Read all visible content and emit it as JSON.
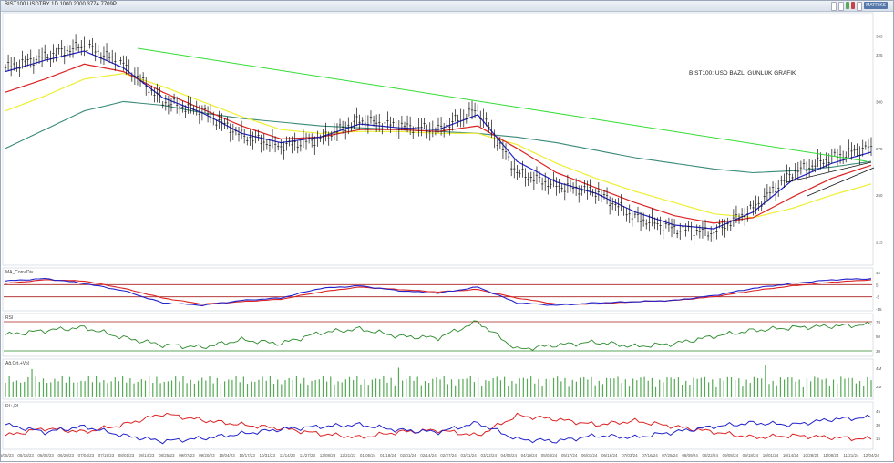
{
  "window": {
    "title": "BIST100 USDTRY 1D 1000 2000 3774 7709P",
    "buttons": [
      "",
      "",
      "",
      "",
      "",
      "MATRİKS"
    ]
  },
  "annotation": "BIST100: USD BAZLI GUNLUK GRAFIK",
  "panels": {
    "macd": "MA_Conv.Div.",
    "rsi": "RSI",
    "volume": "Ağ.Ort.+Vol",
    "dmi": "DI+,DI-"
  },
  "price_axis_labels": [
    "335",
    "325",
    "300",
    "275",
    "250",
    "225"
  ],
  "macd_axis_labels": [
    "15",
    "5",
    "-5",
    "-15"
  ],
  "rsi_axis_labels": [
    "70",
    "50",
    "30"
  ],
  "vol_axis_labels": [
    "4M",
    "2M"
  ],
  "dmi_axis_labels": [
    "45",
    "30",
    "15"
  ],
  "date_labels": [
    "05/05/23",
    "05/18/23",
    "06/02/23",
    "06/20/23",
    "07/04/23",
    "07/19/23",
    "08/01/23",
    "08/14/23",
    "08/25/23",
    "09/07/23",
    "09/20/23",
    "10/04/23",
    "10/17/23",
    "10/31/23",
    "11/14/23",
    "11/27/23",
    "12/08/23",
    "12/21/23",
    "01/05/24",
    "01/18/24",
    "02/01/24",
    "02/14/24",
    "02/27/24",
    "03/11/24",
    "03/22/24",
    "04/04/24",
    "04/19/24",
    "05/03/24",
    "05/17/24",
    "06/03/24",
    "06/18/24",
    "07/03/24",
    "07/16/24",
    "07/29/24",
    "08/09/24",
    "08/22/24",
    "09/05/24",
    "09/18/24",
    "10/01/24",
    "10/14/24",
    "10/28/24",
    "11/08/24",
    "11/21/24",
    "12/04/24"
  ],
  "colors": {
    "trendline": "#33dd33",
    "ema_short": "#2222cc",
    "ema_mid": "#dd2222",
    "ema_long": "#eeee33",
    "ema_vlong": "#3a8a78",
    "price": "#111111",
    "rsi_line": "#2a8a2a",
    "volume": "#55aa55",
    "level_line": "#aa2222"
  },
  "chart_data": {
    "type": "line",
    "title": "BIST100: USD BAZLI GUNLUK GRAFIK",
    "x": [
      "05/05/23",
      "06/02/23",
      "07/04/23",
      "08/01/23",
      "08/25/23",
      "09/20/23",
      "10/17/23",
      "11/14/23",
      "12/08/23",
      "01/05/24",
      "02/01/24",
      "02/27/24",
      "03/22/24",
      "04/19/24",
      "05/17/24",
      "06/18/24",
      "07/16/24",
      "08/09/24",
      "09/05/24",
      "10/01/24",
      "10/28/24",
      "11/21/24",
      "12/04/24"
    ],
    "series": [
      {
        "name": "BIST100 USD",
        "values": [
          318,
          324,
          330,
          320,
          300,
          295,
          282,
          276,
          280,
          290,
          287,
          285,
          296,
          262,
          255,
          252,
          238,
          232,
          230,
          243,
          262,
          270,
          276
        ]
      },
      {
        "name": "EMA short",
        "values": [
          316,
          322,
          327,
          318,
          302,
          294,
          283,
          278,
          281,
          288,
          286,
          285,
          293,
          268,
          257,
          251,
          241,
          234,
          232,
          241,
          258,
          267,
          273
        ]
      },
      {
        "name": "EMA mid",
        "values": [
          305,
          312,
          320,
          316,
          305,
          296,
          287,
          280,
          281,
          285,
          285,
          284,
          287,
          275,
          262,
          254,
          246,
          239,
          235,
          238,
          249,
          259,
          266
        ]
      },
      {
        "name": "EMA long",
        "values": [
          295,
          303,
          312,
          315,
          308,
          300,
          292,
          285,
          283,
          284,
          284,
          283,
          283,
          277,
          267,
          259,
          252,
          246,
          240,
          238,
          243,
          250,
          256
        ]
      },
      {
        "name": "EMA very long",
        "values": [
          275,
          285,
          295,
          300,
          298,
          294,
          291,
          289,
          287,
          286,
          285,
          284,
          283,
          281,
          278,
          274,
          270,
          267,
          264,
          262,
          263,
          265,
          268
        ]
      }
    ],
    "ylim": [
      215,
      345
    ],
    "grid": false
  },
  "rsi_data": [
    52,
    58,
    62,
    48,
    38,
    35,
    45,
    40,
    55,
    60,
    50,
    48,
    70,
    32,
    38,
    42,
    36,
    40,
    50,
    58,
    62,
    64,
    66
  ],
  "macd_data": [
    8,
    10,
    6,
    0,
    -10,
    -12,
    -8,
    -6,
    2,
    4,
    0,
    -2,
    3,
    -10,
    -12,
    -10,
    -9,
    -8,
    -4,
    2,
    6,
    9,
    10
  ],
  "signal_data": [
    6,
    9,
    8,
    2,
    -6,
    -11,
    -9,
    -7,
    -1,
    3,
    1,
    -1,
    1,
    -6,
    -11,
    -11,
    -9,
    -8,
    -5,
    0,
    4,
    7,
    9
  ],
  "di_plus": [
    30,
    22,
    28,
    18,
    12,
    15,
    20,
    25,
    28,
    30,
    24,
    22,
    32,
    14,
    12,
    18,
    16,
    22,
    28,
    32,
    30,
    36,
    38
  ],
  "di_minus": [
    18,
    26,
    22,
    30,
    42,
    35,
    30,
    26,
    20,
    16,
    22,
    24,
    18,
    40,
    36,
    30,
    34,
    28,
    22,
    16,
    18,
    16,
    14
  ]
}
